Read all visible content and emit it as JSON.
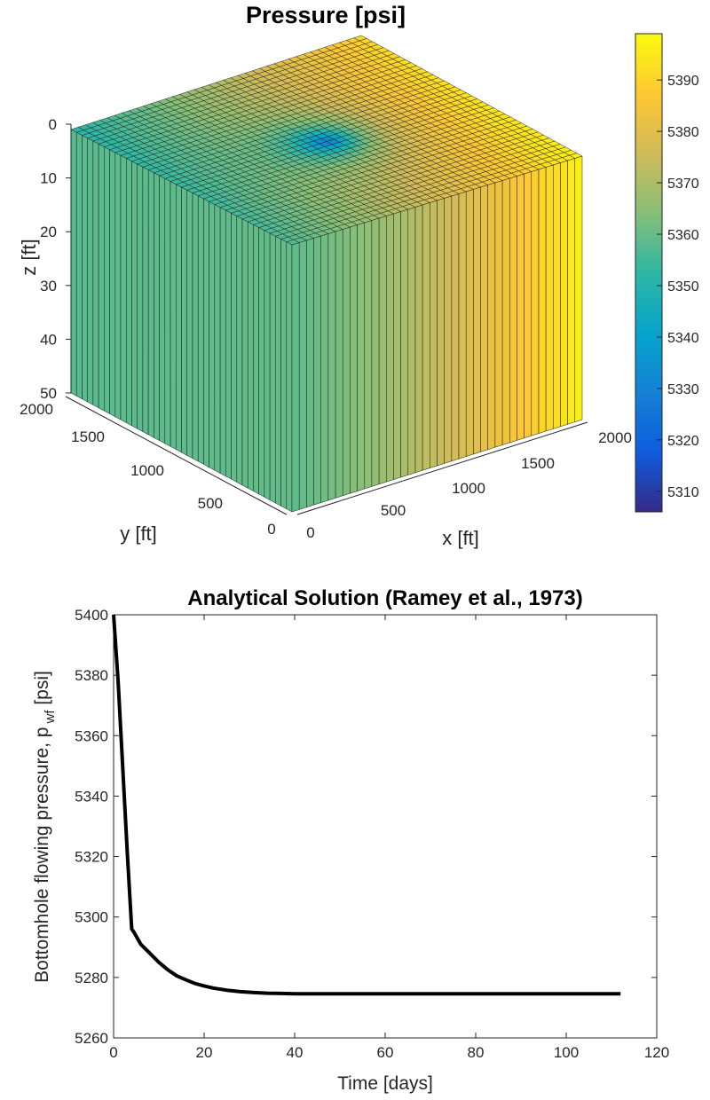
{
  "chart_data": [
    {
      "type": "surface3d",
      "title": "Pressure [psi]",
      "xlabel": "x [ft]",
      "ylabel": "y [ft]",
      "zlabel": "z [ft]",
      "xlim": [
        0,
        2000
      ],
      "ylim": [
        0,
        2000
      ],
      "zlim": [
        0,
        50
      ],
      "xticks": [
        "0",
        "500",
        "1000",
        "1500",
        "2000"
      ],
      "yticks": [
        "0",
        "500",
        "1000",
        "1500",
        "2000"
      ],
      "zticks": [
        "0",
        "10",
        "20",
        "30",
        "40",
        "50"
      ],
      "grid_cells": 40,
      "colormap": "parula",
      "colorbar": {
        "range": [
          5306,
          5399
        ],
        "ticks": [
          "5310",
          "5320",
          "5330",
          "5340",
          "5350",
          "5360",
          "5370",
          "5380",
          "5390"
        ]
      },
      "field": {
        "description_free": true,
        "min_pressure": 5306,
        "min_location": [
          1000,
          1000
        ],
        "max_pressure": 5399,
        "front_face_y_side_pressure": 5358,
        "high_x_edge_pressure": 5397
      }
    },
    {
      "type": "line",
      "title": "Analytical Solution (Ramey et al., 1973)",
      "xlabel": "Time [days]",
      "ylabel_main": "Bottomhole flowing pressure, p",
      "ylabel_sub": "wf",
      "ylabel_unit": " [psi]",
      "xlim": [
        0,
        120
      ],
      "ylim": [
        5260,
        5400
      ],
      "xticks": [
        "0",
        "20",
        "40",
        "60",
        "80",
        "100",
        "120"
      ],
      "yticks": [
        "5260",
        "5280",
        "5300",
        "5320",
        "5340",
        "5360",
        "5380",
        "5400"
      ],
      "grid": false,
      "series": [
        {
          "color": "#000000",
          "x": [
            0,
            1,
            2,
            3,
            4,
            4.5,
            6,
            8,
            10,
            12,
            14,
            16,
            18,
            20,
            22,
            25,
            28,
            31,
            34,
            37,
            40,
            50,
            60,
            80,
            100,
            112
          ],
          "y": [
            5400,
            5378,
            5350,
            5322,
            5296,
            5295,
            5291,
            5288,
            5285,
            5282.5,
            5280.5,
            5279.2,
            5278,
            5277.2,
            5276.5,
            5275.8,
            5275.3,
            5275,
            5274.8,
            5274.7,
            5274.6,
            5274.6,
            5274.6,
            5274.6,
            5274.6,
            5274.6
          ]
        }
      ]
    }
  ]
}
